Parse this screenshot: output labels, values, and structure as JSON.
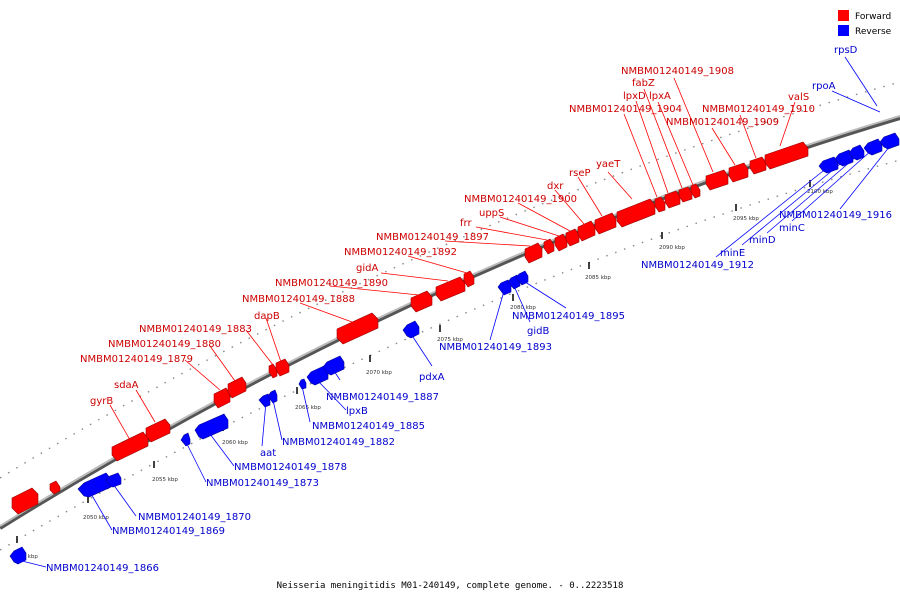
{
  "caption": "Neisseria meningitidis M01-240149, complete genome. - 0..2223518",
  "legend": [
    {
      "label": "Forward",
      "color": "#ff0000"
    },
    {
      "label": "Reverse",
      "color": "#0000ff"
    }
  ],
  "ticks": [
    "2045 kbp",
    "2050 kbp",
    "2055 kbp",
    "2060 kbp",
    "2065 kbp",
    "2070 kbp",
    "2075 kbp",
    "2080 kbp",
    "2085 kbp",
    "2090 kbp",
    "2095 kbp",
    "2100 kbp"
  ],
  "forward_labels": [
    "gyrB",
    "sdaA",
    "NMBM01240149_1879",
    "NMBM01240149_1880",
    "NMBM01240149_1883",
    "dapB",
    "NMBM01240149_1888",
    "NMBM01240149_1890",
    "gidA",
    "NMBM01240149_1892",
    "NMBM01240149_1897",
    "frr",
    "uppS",
    "NMBM01240149_1900",
    "dxr",
    "rseP",
    "yaeT",
    "NMBM01240149_1904",
    "lpxD",
    "fabZ",
    "lpxA",
    "NMBM01240149_1908",
    "NMBM01240149_1909",
    "NMBM01240149_1910",
    "valS"
  ],
  "reverse_labels": [
    "NMBM01240149_1866",
    "NMBM01240149_1869",
    "NMBM01240149_1870",
    "NMBM01240149_1873",
    "NMBM01240149_1878",
    "aat",
    "NMBM01240149_1882",
    "NMBM01240149_1885",
    "lpxB",
    "NMBM01240149_1887",
    "pdxA",
    "NMBM01240149_1893",
    "gidB",
    "NMBM01240149_1895",
    "NMBM01240149_1912",
    "minE",
    "minD",
    "minC",
    "NMBM01240149_1916",
    "rpoA",
    "rpsD"
  ],
  "colors": {
    "forward": "#ff0000",
    "reverse": "#0000ff",
    "forward_side": "#990000",
    "reverse_side": "#000099",
    "backbone": "#888888"
  }
}
